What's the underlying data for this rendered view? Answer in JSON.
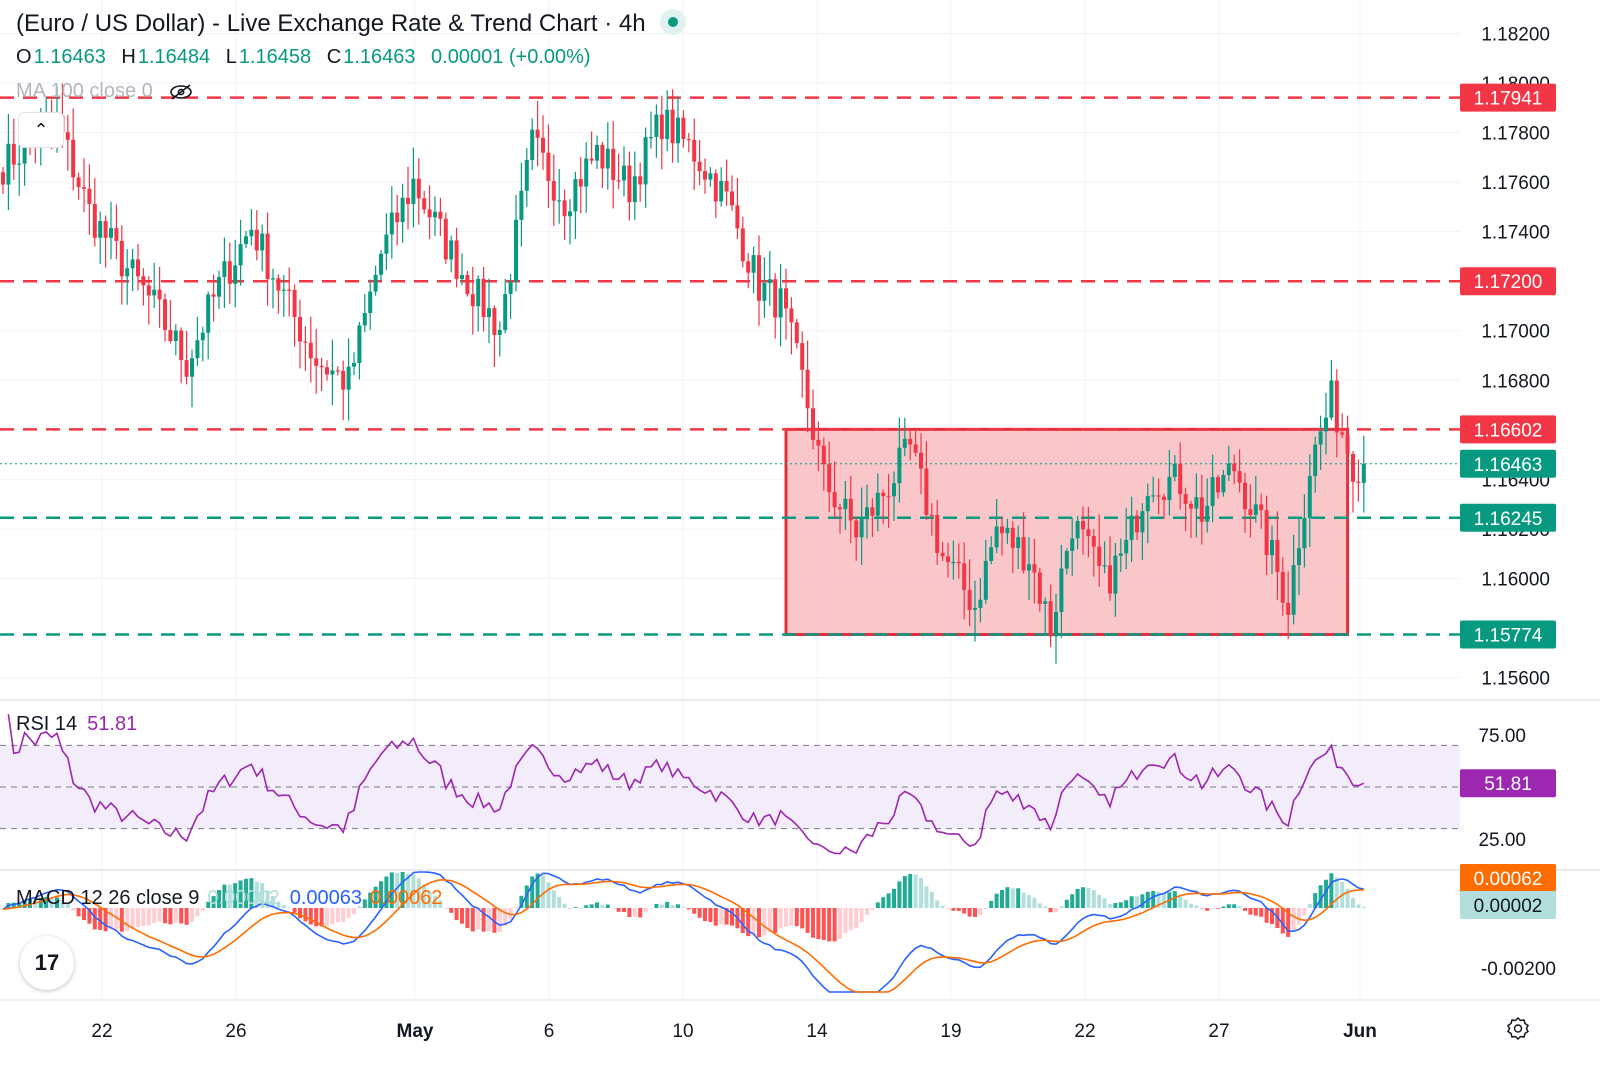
{
  "header": {
    "title": "(Euro / US Dollar) - Live Exchange Rate & Trend Chart · 4h",
    "ohlc": {
      "o_label": "O",
      "o_value": "1.16463",
      "h_label": "H",
      "h_value": "1.16484",
      "l_label": "L",
      "l_value": "1.16458",
      "c_label": "C",
      "c_value": "1.16463",
      "change": "0.00001 (+0.00%)"
    },
    "ma_label": "MA 100 close 0",
    "collapse_icon": "chevron-up-icon",
    "visibility_icon": "eye-off-icon"
  },
  "rsi_legend": {
    "label": "RSI 14",
    "value": "51.81"
  },
  "macd_legend": {
    "label": "MACD 12 26 close 9",
    "hist": "0.00002",
    "macd": "0.00063",
    "signal": "0.00062"
  },
  "colors": {
    "up": "#089981",
    "down": "#f23645",
    "support": "#089981",
    "resistance": "#f23645",
    "rsi_line": "#9c27b0",
    "rsi_band": "#f3ecfa",
    "macd_line": "#2962ff",
    "signal_line": "#ff6d00",
    "range_box_fill": "#f8bcc1",
    "range_box_border": "#e0303e"
  },
  "chart_data": [
    {
      "type": "candlestick",
      "timeframe": "4h",
      "y_axis": {
        "range": [
          1.1555,
          1.1823
        ],
        "ticks": [
          "1.18200",
          "1.18000",
          "1.17800",
          "1.17600",
          "1.17400",
          "1.17000",
          "1.16800",
          "1.16400",
          "1.16200",
          "1.16000",
          "1.15600"
        ]
      },
      "x_axis": {
        "ticks": [
          "22",
          "26",
          "May",
          "6",
          "10",
          "14",
          "19",
          "22",
          "27",
          "Jun"
        ]
      },
      "current_price": {
        "value": 1.16463,
        "label": "1.16463"
      },
      "horizontal_levels": [
        {
          "value": 1.17941,
          "label": "1.17941",
          "kind": "resistance"
        },
        {
          "value": 1.172,
          "label": "1.17200",
          "kind": "resistance"
        },
        {
          "value": 1.16602,
          "label": "1.16602",
          "kind": "resistance"
        },
        {
          "value": 1.16245,
          "label": "1.16245",
          "kind": "support"
        },
        {
          "value": 1.15774,
          "label": "1.15774",
          "kind": "support"
        }
      ],
      "range_box": {
        "top": 1.16602,
        "bottom": 1.15774,
        "start_index": 145,
        "end_index": 249
      },
      "close_path": [
        [
          0,
          1.1767
        ],
        [
          10,
          1.1784
        ],
        [
          16,
          1.1748
        ],
        [
          22,
          1.1728
        ],
        [
          28,
          1.171
        ],
        [
          34,
          1.1687
        ],
        [
          40,
          1.1718
        ],
        [
          46,
          1.1742
        ],
        [
          52,
          1.1714
        ],
        [
          58,
          1.1688
        ],
        [
          64,
          1.1679
        ],
        [
          70,
          1.1731
        ],
        [
          76,
          1.176
        ],
        [
          82,
          1.1735
        ],
        [
          88,
          1.1713
        ],
        [
          92,
          1.1701
        ],
        [
          98,
          1.1775
        ],
        [
          104,
          1.1753
        ],
        [
          110,
          1.1772
        ],
        [
          116,
          1.1758
        ],
        [
          122,
          1.1785
        ],
        [
          128,
          1.1772
        ],
        [
          134,
          1.1753
        ],
        [
          140,
          1.1718
        ],
        [
          144,
          1.1711
        ],
        [
          148,
          1.168
        ],
        [
          152,
          1.164
        ],
        [
          158,
          1.1619
        ],
        [
          162,
          1.1631
        ],
        [
          168,
          1.1652
        ],
        [
          174,
          1.1609
        ],
        [
          180,
          1.1589
        ],
        [
          184,
          1.162
        ],
        [
          190,
          1.1609
        ],
        [
          194,
          1.158
        ],
        [
          198,
          1.1623
        ],
        [
          204,
          1.1598
        ],
        [
          208,
          1.1612
        ],
        [
          212,
          1.164
        ],
        [
          218,
          1.1639
        ],
        [
          222,
          1.1627
        ],
        [
          228,
          1.1645
        ],
        [
          234,
          1.1615
        ],
        [
          238,
          1.159
        ],
        [
          242,
          1.1645
        ],
        [
          246,
          1.1672
        ],
        [
          250,
          1.1647
        ],
        [
          252,
          1.1646
        ]
      ]
    },
    {
      "type": "line",
      "name": "RSI 14",
      "y_axis": {
        "range": [
          15,
          85
        ],
        "ticks": [
          "75.00",
          "25.00"
        ]
      },
      "bands": [
        30,
        50,
        70
      ],
      "current": {
        "value": 51.81,
        "label": "51.81"
      }
    },
    {
      "type": "line+histogram",
      "name": "MACD 12 26 close 9",
      "y_axis": {
        "range": [
          -0.0028,
          0.0012
        ],
        "ticks": [
          "-0.00200"
        ]
      },
      "current": {
        "macd": 0.00063,
        "signal": 0.00062,
        "hist": 2e-05,
        "signal_label": "0.00062",
        "hist_label": "0.00002"
      }
    }
  ]
}
